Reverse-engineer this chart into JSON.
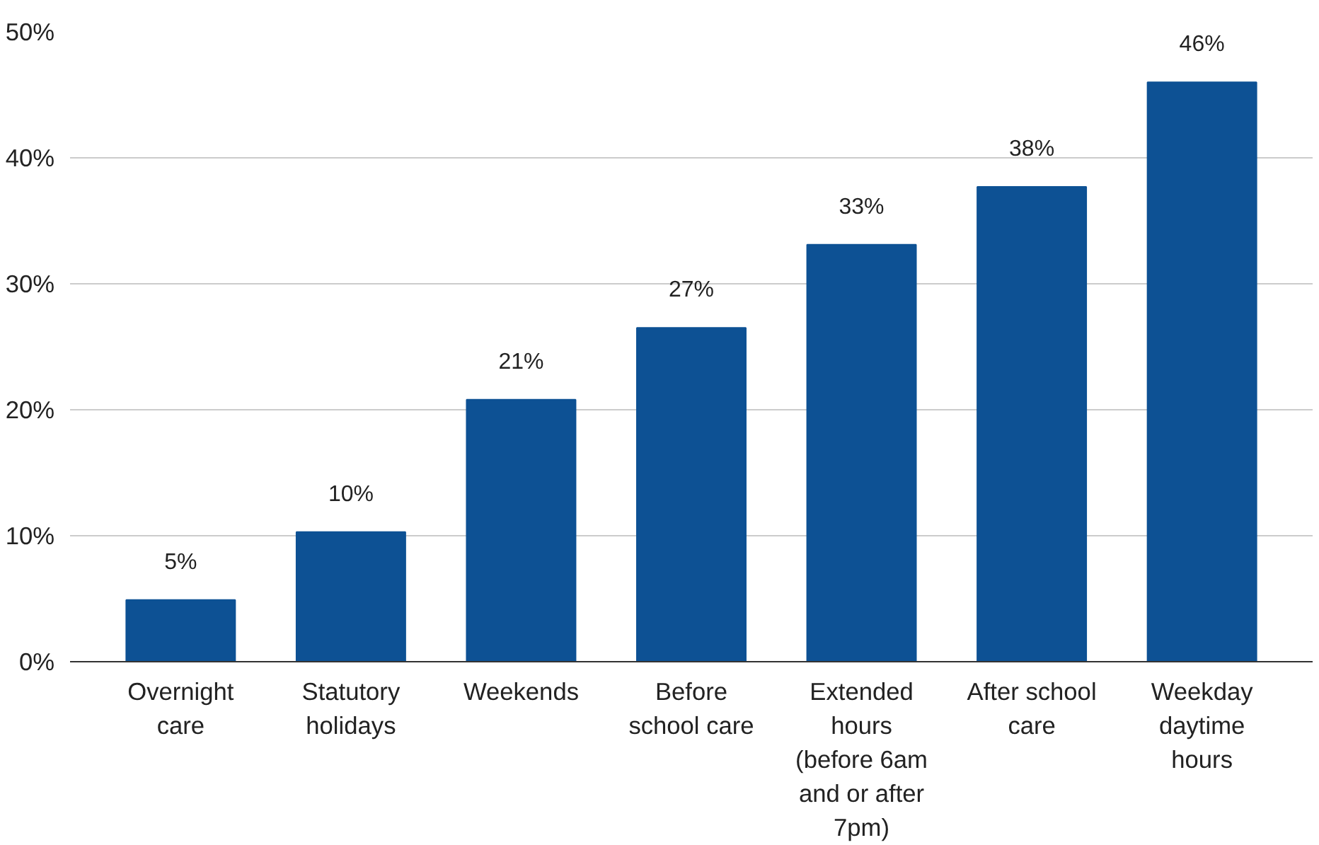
{
  "chart_data": {
    "type": "bar",
    "categories": [
      "Overnight care",
      "Statutory holidays",
      "Weekends",
      "Before school care",
      "Extended hours (before 6am and or after 7pm)",
      "After school care",
      "Weekday daytime hours"
    ],
    "values": [
      4.9,
      10.3,
      20.8,
      26.5,
      33.1,
      37.7,
      46.0
    ],
    "value_labels": [
      "5%",
      "10%",
      "21%",
      "27%",
      "33%",
      "38%",
      "46%"
    ],
    "color": "#0d5194",
    "ylim": [
      0,
      50
    ],
    "yticks": [
      {
        "value": 0,
        "label": "0%"
      },
      {
        "value": 10,
        "label": "10%"
      },
      {
        "value": 20,
        "label": "20%"
      },
      {
        "value": 30,
        "label": "30%"
      },
      {
        "value": 40,
        "label": "40%"
      },
      {
        "value": 50,
        "label": "50%"
      }
    ],
    "grid": "y"
  }
}
